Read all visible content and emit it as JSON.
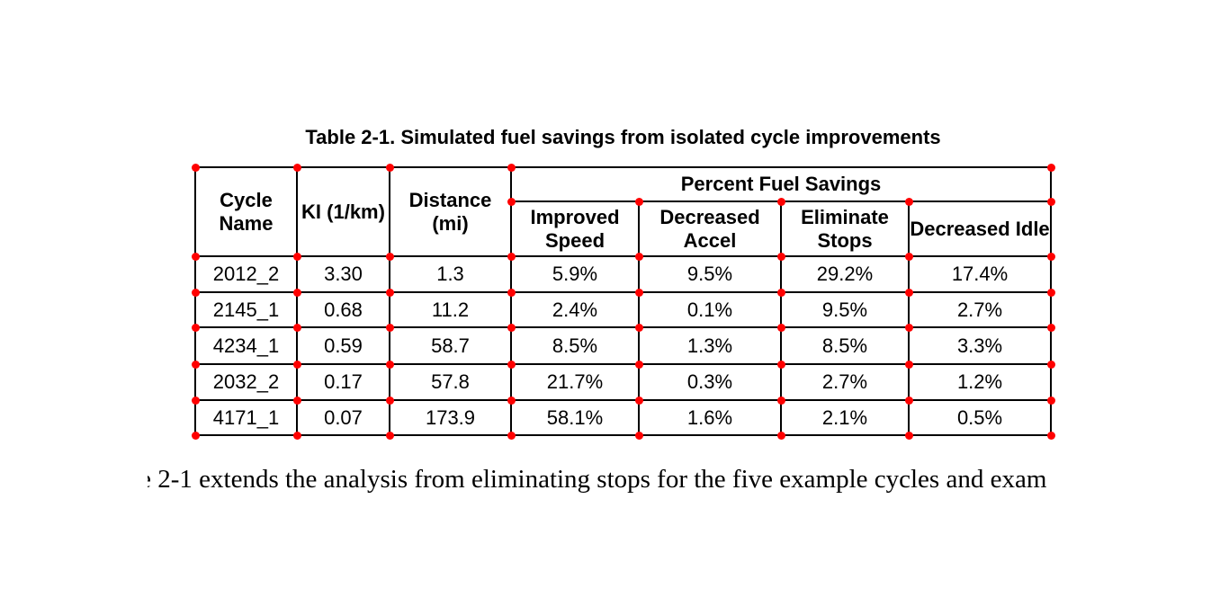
{
  "caption": "Table 2-1. Simulated fuel savings from isolated cycle improvements",
  "table": {
    "columns": [
      "Cycle Name",
      "KI (1/km)",
      "Distance (mi)"
    ],
    "group_header": "Percent Fuel Savings",
    "sub_columns": [
      "Improved Speed",
      "Decreased Accel",
      "Eliminate Stops",
      "Decreased Idle"
    ],
    "rows": [
      {
        "cells": [
          "2012_2",
          "3.30",
          "1.3",
          "5.9%",
          "9.5%",
          "29.2%",
          "17.4%"
        ]
      },
      {
        "cells": [
          "2145_1",
          "0.68",
          "11.2",
          "2.4%",
          "0.1%",
          "9.5%",
          "2.7%"
        ]
      },
      {
        "cells": [
          "4234_1",
          "0.59",
          "58.7",
          "8.5%",
          "1.3%",
          "8.5%",
          "3.3%"
        ]
      },
      {
        "cells": [
          "2032_2",
          "0.17",
          "57.8",
          "21.7%",
          "0.3%",
          "2.7%",
          "1.2%"
        ]
      },
      {
        "cells": [
          "4171_1",
          "0.07",
          "173.9",
          "58.1%",
          "1.6%",
          "2.1%",
          "0.5%"
        ]
      }
    ]
  },
  "body": {
    "fragment": "e",
    "text": "2-1 extends the analysis from eliminating stops for the five example cycles and exam"
  },
  "annotations": {
    "marker_color": "#ff0000",
    "marker_description": "red dots marking table cell corner intersections"
  },
  "colors": {
    "background": "#ffffff",
    "border": "#000000",
    "text": "#000000"
  }
}
